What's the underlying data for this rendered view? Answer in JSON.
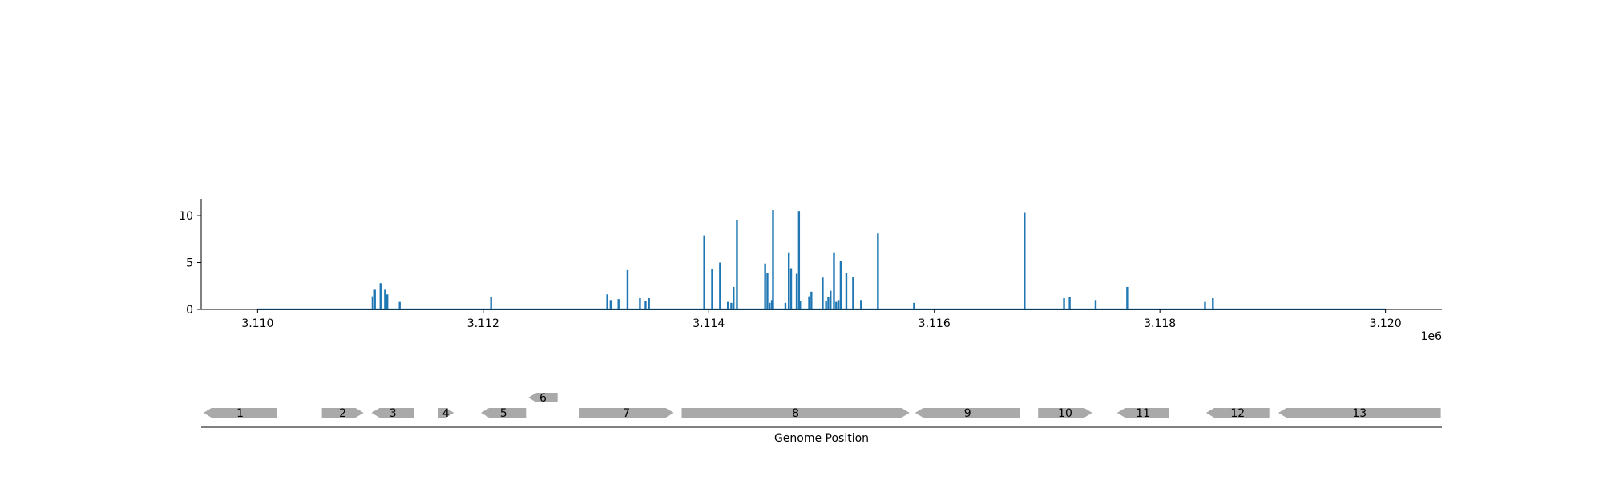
{
  "chart_data": [
    {
      "type": "bar",
      "title": "",
      "xlabel": "",
      "ylabel": "",
      "x_offset_label": "1e6",
      "xlim": [
        3109500,
        3120500
      ],
      "ylim": [
        0,
        11.8
      ],
      "x_ticks": [
        3110000,
        3112000,
        3114000,
        3116000,
        3118000,
        3120000
      ],
      "x_tick_labels": [
        "3.110",
        "3.112",
        "3.114",
        "3.116",
        "3.118",
        "3.120"
      ],
      "y_ticks": [
        0,
        5,
        10
      ],
      "y_tick_labels": [
        "0",
        "5",
        "10"
      ],
      "grid": false,
      "color": "#1f77b4",
      "baseline": {
        "start": 3110000,
        "end": 3120000,
        "value": 0.1
      },
      "series": [
        {
          "x": [
            3111020,
            3111040,
            3111090,
            3111130,
            3111150,
            3111260,
            3112070,
            3113100,
            3113130,
            3113200,
            3113280,
            3113390,
            3113440,
            3113470,
            3113960,
            3114030,
            3114100,
            3114170,
            3114200,
            3114220,
            3114250,
            3114500,
            3114520,
            3114540,
            3114560,
            3114570,
            3114680,
            3114710,
            3114730,
            3114780,
            3114800,
            3114810,
            3114890,
            3114910,
            3115010,
            3115040,
            3115060,
            3115080,
            3115110,
            3115130,
            3115150,
            3115170,
            3115220,
            3115280,
            3115350,
            3115500,
            3115820,
            3116800,
            3117150,
            3117200,
            3117430,
            3117710,
            3118400,
            3118470
          ],
          "values": [
            1.4,
            2.1,
            2.8,
            2.1,
            1.6,
            0.8,
            1.3,
            1.6,
            1.0,
            1.1,
            4.2,
            1.2,
            0.9,
            1.2,
            7.9,
            4.3,
            5.0,
            0.8,
            0.7,
            2.4,
            9.5,
            4.9,
            3.9,
            0.7,
            1.0,
            10.6,
            0.7,
            6.1,
            4.4,
            3.8,
            10.5,
            0.9,
            1.4,
            1.9,
            3.4,
            0.9,
            1.3,
            2.0,
            6.1,
            0.8,
            1.0,
            5.2,
            3.9,
            3.5,
            1.0,
            8.1,
            0.7,
            10.3,
            1.2,
            1.3,
            1.0,
            2.4,
            0.8,
            1.2
          ]
        }
      ]
    },
    {
      "type": "gene_track",
      "xlabel": "Genome Position",
      "xlim": [
        3109500,
        3120500
      ],
      "color": "#a9a9a9",
      "genes": [
        {
          "label": "1",
          "start": 3109520,
          "end": 3110170,
          "strand": "-",
          "row": 0
        },
        {
          "label": "2",
          "start": 3110570,
          "end": 3110940,
          "strand": "+",
          "row": 0
        },
        {
          "label": "3",
          "start": 3111010,
          "end": 3111390,
          "strand": "-",
          "row": 0
        },
        {
          "label": "4",
          "start": 3111600,
          "end": 3111740,
          "strand": "+",
          "row": 0
        },
        {
          "label": "5",
          "start": 3111980,
          "end": 3112380,
          "strand": "-",
          "row": 0
        },
        {
          "label": "6",
          "start": 3112400,
          "end": 3112660,
          "strand": "-",
          "row": 1
        },
        {
          "label": "7",
          "start": 3112850,
          "end": 3113690,
          "strand": "+",
          "row": 0
        },
        {
          "label": "8",
          "start": 3113760,
          "end": 3115780,
          "strand": "+",
          "row": 0
        },
        {
          "label": "9",
          "start": 3115830,
          "end": 3116760,
          "strand": "-",
          "row": 0
        },
        {
          "label": "10",
          "start": 3116920,
          "end": 3117400,
          "strand": "+",
          "row": 0
        },
        {
          "label": "11",
          "start": 3117620,
          "end": 3118080,
          "strand": "-",
          "row": 0
        },
        {
          "label": "12",
          "start": 3118410,
          "end": 3118970,
          "strand": "-",
          "row": 0
        },
        {
          "label": "13",
          "start": 3119050,
          "end": 3120490,
          "strand": "-",
          "row": 0
        }
      ]
    }
  ]
}
